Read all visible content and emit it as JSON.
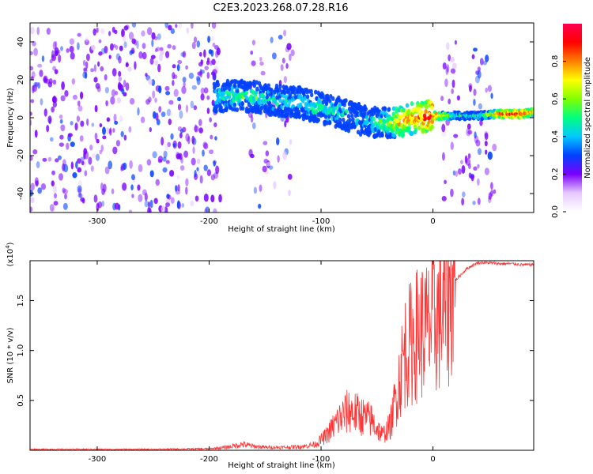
{
  "page": {
    "title": "C2E3.2023.268.07.28.R16"
  },
  "chart_data": [
    {
      "type": "heatmap",
      "xlabel": "Height of straight line (km)",
      "ylabel": "Frequency (Hz)",
      "xlim": [
        -360,
        90
      ],
      "ylim": [
        -50,
        50
      ],
      "x_ticks": [
        -300,
        -200,
        -100,
        0
      ],
      "y_ticks": [
        -40,
        -20,
        0,
        20,
        40
      ],
      "colorbar": {
        "label": "Normalized spectral amplitude",
        "range": [
          0.0,
          1.0
        ],
        "ticks": [
          0.0,
          0.2,
          0.4,
          0.6,
          0.8
        ],
        "tick_labels": [
          "0.0",
          "0.2",
          "0.4",
          "0.6",
          "0.8"
        ],
        "colormap": [
          "#ffffff",
          "#e6c8ff",
          "#7a00ff",
          "#0040ff",
          "#00c8ff",
          "#00ff80",
          "#80ff00",
          "#ffff00",
          "#ff8000",
          "#ff0000",
          "#ff0050"
        ]
      },
      "noise_regions": [
        {
          "x": [
            -360,
            -190
          ],
          "y": [
            -50,
            50
          ],
          "intensity": 0.15
        },
        {
          "x": [
            -165,
            -125
          ],
          "y": [
            -50,
            45
          ],
          "intensity": 0.08
        },
        {
          "x": [
            8,
            55
          ],
          "y": [
            -45,
            40
          ],
          "intensity": 0.12
        }
      ],
      "ridge": {
        "x": [
          -195,
          -180,
          -160,
          -140,
          -120,
          -100,
          -80,
          -60,
          -45,
          -30,
          -15,
          0,
          20,
          40,
          60,
          80,
          90
        ],
        "y": [
          11,
          12,
          11,
          9,
          8,
          5,
          2,
          -2,
          -3,
          -2,
          0,
          1,
          1,
          1,
          2,
          2,
          3
        ],
        "intensity": [
          0.45,
          0.5,
          0.5,
          0.45,
          0.45,
          0.5,
          0.45,
          0.4,
          0.55,
          0.75,
          0.8,
          0.9,
          0.5,
          0.5,
          0.85,
          0.9,
          0.8
        ]
      }
    },
    {
      "type": "line",
      "xlabel": "Height of straight line (km)",
      "ylabel": "SNR (10 * v/v)",
      "scale_label": "(x10",
      "scale_exp": "4",
      "scale_close": ")",
      "xlim": [
        -360,
        90
      ],
      "ylim": [
        0,
        1.9
      ],
      "x_ticks": [
        -300,
        -200,
        -100,
        0
      ],
      "y_ticks": [
        0.5,
        1.0,
        1.5
      ],
      "y_tick_labels": [
        "0.5",
        "1.0",
        "1.5"
      ],
      "color": "#ff3333",
      "series": [
        {
          "x": [
            -360,
            -300,
            -250,
            -200,
            -185,
            -170,
            -160,
            -150,
            -130,
            -115,
            -105,
            -95,
            -85,
            -75,
            -65,
            -55,
            -45,
            -38,
            -32,
            -25,
            -18,
            -12,
            -5,
            2,
            8,
            15,
            20,
            30,
            40,
            50,
            60,
            70,
            80,
            90
          ],
          "y": [
            0.01,
            0.01,
            0.01,
            0.015,
            0.03,
            0.06,
            0.04,
            0.03,
            0.03,
            0.04,
            0.06,
            0.15,
            0.3,
            0.4,
            0.35,
            0.3,
            0.15,
            0.25,
            0.6,
            1.0,
            1.1,
            1.2,
            1.2,
            1.3,
            1.4,
            1.55,
            1.7,
            1.82,
            1.88,
            1.88,
            1.87,
            1.87,
            1.86,
            1.86
          ]
        }
      ]
    }
  ]
}
